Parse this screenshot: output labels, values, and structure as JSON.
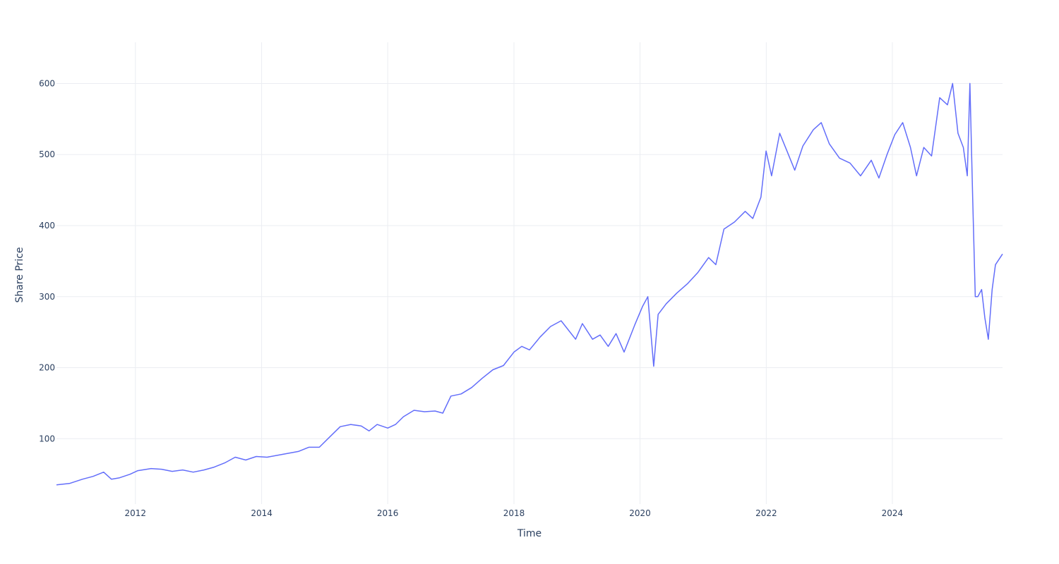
{
  "chart_data": {
    "type": "line",
    "title": "",
    "xlabel": "Time",
    "ylabel": "Share Price",
    "x_axis_type": "date",
    "xlim": [
      "2010-10-01",
      "2025-09-30"
    ],
    "ylim": [
      8,
      658
    ],
    "x_ticks": [
      {
        "value": "2012-01-01",
        "label": "2012"
      },
      {
        "value": "2014-01-01",
        "label": "2014"
      },
      {
        "value": "2016-01-01",
        "label": "2016"
      },
      {
        "value": "2018-01-01",
        "label": "2018"
      },
      {
        "value": "2020-01-01",
        "label": "2020"
      },
      {
        "value": "2022-01-01",
        "label": "2022"
      },
      {
        "value": "2024-01-01",
        "label": "2024"
      }
    ],
    "y_ticks": [
      100,
      200,
      300,
      400,
      500,
      600
    ],
    "grid": true,
    "legend": "none",
    "line_color": "#636efa",
    "series": [
      {
        "x": [
          "2010-10-01",
          "2010-12-15",
          "2011-03-01",
          "2011-05-01",
          "2011-07-01",
          "2011-08-15",
          "2011-10-01",
          "2011-12-01",
          "2012-01-15",
          "2012-04-01",
          "2012-06-01",
          "2012-08-01",
          "2012-10-01",
          "2012-12-01",
          "2013-02-01",
          "2013-04-01",
          "2013-06-01",
          "2013-08-01",
          "2013-10-01",
          "2013-12-01",
          "2014-02-01",
          "2014-05-01",
          "2014-08-01",
          "2014-10-01",
          "2014-12-01",
          "2015-02-01",
          "2015-04-01",
          "2015-06-01",
          "2015-08-01",
          "2015-09-15",
          "2015-11-01",
          "2016-01-01",
          "2016-02-15",
          "2016-04-01",
          "2016-06-01",
          "2016-08-01",
          "2016-10-01",
          "2016-11-15",
          "2017-01-01",
          "2017-03-01",
          "2017-05-01",
          "2017-07-01",
          "2017-09-01",
          "2017-11-01",
          "2018-01-01",
          "2018-02-15",
          "2018-04-01",
          "2018-06-01",
          "2018-08-01",
          "2018-10-01",
          "2018-12-24",
          "2019-02-01",
          "2019-04-01",
          "2019-05-15",
          "2019-07-01",
          "2019-08-15",
          "2019-10-01",
          "2019-12-01",
          "2020-01-15",
          "2020-02-15",
          "2020-03-20",
          "2020-04-15",
          "2020-06-01",
          "2020-08-01",
          "2020-10-01",
          "2020-12-01",
          "2021-02-01",
          "2021-03-15",
          "2021-05-01",
          "2021-07-01",
          "2021-09-01",
          "2021-10-15",
          "2021-12-01",
          "2021-12-31",
          "2022-02-01",
          "2022-03-20",
          "2022-05-01",
          "2022-06-15",
          "2022-08-01",
          "2022-10-01",
          "2022-11-15",
          "2023-01-01",
          "2023-03-01",
          "2023-05-01",
          "2023-07-01",
          "2023-09-01",
          "2023-10-15",
          "2023-12-01",
          "2024-01-15",
          "2024-03-01",
          "2024-04-15",
          "2024-05-20",
          "2024-07-01",
          "2024-08-15",
          "2024-10-01",
          "2024-11-15",
          "2024-12-15",
          "2025-01-15",
          "2025-02-15",
          "2025-03-10",
          "2025-03-25",
          "2025-04-10",
          "2025-04-25",
          "2025-05-10",
          "2025-06-01",
          "2025-06-20",
          "2025-07-10",
          "2025-08-01",
          "2025-08-20",
          "2025-09-30"
        ],
        "y": [
          35,
          37,
          43,
          47,
          53,
          43,
          45,
          50,
          55,
          58,
          57,
          54,
          56,
          53,
          56,
          60,
          66,
          74,
          70,
          75,
          74,
          78,
          82,
          88,
          88,
          103,
          117,
          120,
          118,
          111,
          120,
          115,
          120,
          131,
          140,
          138,
          139,
          136,
          160,
          163,
          172,
          185,
          197,
          203,
          222,
          230,
          225,
          243,
          258,
          266,
          240,
          262,
          240,
          246,
          230,
          248,
          222,
          260,
          286,
          300,
          202,
          275,
          290,
          305,
          318,
          334,
          355,
          345,
          395,
          405,
          420,
          410,
          440,
          505,
          470,
          530,
          505,
          478,
          512,
          535,
          545,
          515,
          495,
          488,
          470,
          492,
          467,
          500,
          528,
          545,
          510,
          470,
          510,
          498,
          580,
          570,
          600,
          530,
          510,
          470,
          600,
          440,
          300,
          300,
          310,
          270,
          240,
          310,
          345,
          360
        ]
      }
    ]
  }
}
